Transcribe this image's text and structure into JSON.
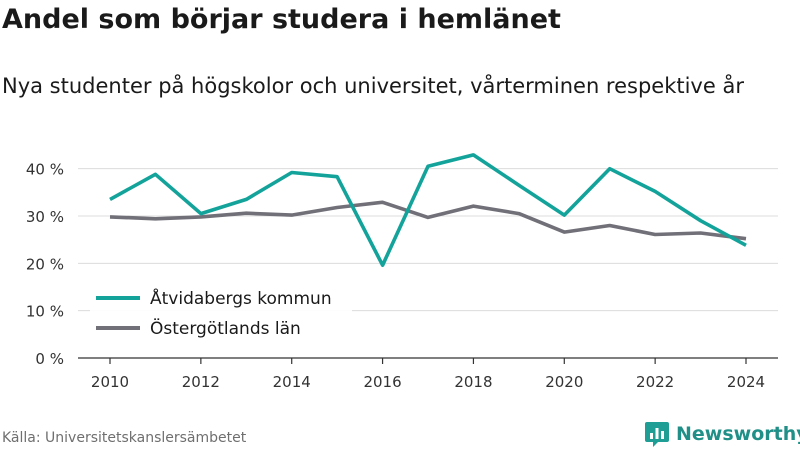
{
  "title": "Andel som börjar studera i hemlänet",
  "subtitle": "Nya studenter på högskolor och universitet, vårterminen respektive år",
  "source": "Källa: Universitetskanslersämbetet",
  "brand": {
    "name": "Newsworthy",
    "icon": "newsworthy-logo-icon",
    "color": "#1f9e96"
  },
  "chart_data": {
    "type": "line",
    "x": [
      2010,
      2011,
      2012,
      2013,
      2014,
      2015,
      2016,
      2017,
      2018,
      2019,
      2020,
      2021,
      2022,
      2023,
      2024
    ],
    "x_ticks": [
      "2010",
      "2012",
      "2014",
      "2016",
      "2018",
      "2020",
      "2022",
      "2024"
    ],
    "y_ticks": [
      "0 %",
      "10 %",
      "20 %",
      "30 %",
      "40 %"
    ],
    "ylim": [
      0,
      45
    ],
    "grid": true,
    "legend_position": "bottom-left",
    "series": [
      {
        "name": "Åtvidabergs kommun",
        "color": "#13a39b",
        "values": [
          33.5,
          38.8,
          30.5,
          33.5,
          39.2,
          38.3,
          19.6,
          40.5,
          42.9,
          36.5,
          30.2,
          40.0,
          35.2,
          29.0,
          23.8
        ]
      },
      {
        "name": "Östergötlands län",
        "color": "#716f78",
        "values": [
          29.8,
          29.4,
          29.8,
          30.6,
          30.2,
          31.8,
          32.9,
          29.7,
          32.1,
          30.5,
          26.6,
          28.0,
          26.1,
          26.4,
          25.2
        ]
      }
    ]
  }
}
